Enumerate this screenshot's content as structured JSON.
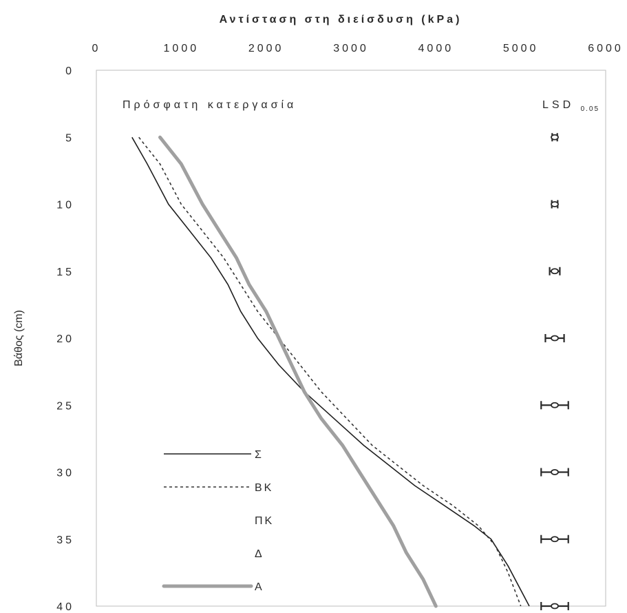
{
  "chart_data": {
    "type": "line",
    "title": "",
    "xlabel": "Αντίσταση στη διείσδυση (kPa)",
    "ylabel": "Βάθος (cm)",
    "xlim": [
      0,
      6000
    ],
    "ylim": [
      0,
      40
    ],
    "x_axis_position": "top",
    "y_inverted": true,
    "grid": false,
    "x_ticks": [
      "0",
      "1000",
      "2000",
      "3000",
      "4000",
      "5000",
      "6000"
    ],
    "y_ticks": [
      "0",
      "5",
      "10",
      "15",
      "20",
      "25",
      "30",
      "35",
      "40"
    ],
    "annotation": "Πρόσφατη κατεργασία",
    "lsd_label": {
      "main": "LSD",
      "sub": "0.05"
    },
    "series": [
      {
        "name": "Σ",
        "style": "solid-black",
        "points": [
          [
            420,
            5
          ],
          [
            600,
            7
          ],
          [
            850,
            10
          ],
          [
            1100,
            12
          ],
          [
            1350,
            14
          ],
          [
            1550,
            16
          ],
          [
            1700,
            18
          ],
          [
            1900,
            20
          ],
          [
            2150,
            22
          ],
          [
            2450,
            24
          ],
          [
            2800,
            26
          ],
          [
            3150,
            28
          ],
          [
            3450,
            29.5
          ],
          [
            3750,
            31
          ],
          [
            4100,
            32.5
          ],
          [
            4450,
            34
          ],
          [
            4650,
            35
          ],
          [
            4850,
            37
          ],
          [
            5100,
            40
          ]
        ]
      },
      {
        "name": "ΒΚ",
        "style": "dotted-black",
        "points": [
          [
            500,
            5
          ],
          [
            750,
            7
          ],
          [
            1000,
            10
          ],
          [
            1250,
            12
          ],
          [
            1500,
            14
          ],
          [
            1700,
            16
          ],
          [
            1900,
            18
          ],
          [
            2150,
            20
          ],
          [
            2400,
            22
          ],
          [
            2650,
            24
          ],
          [
            2950,
            26
          ],
          [
            3250,
            28
          ],
          [
            3550,
            29.5
          ],
          [
            3850,
            31
          ],
          [
            4200,
            32.5
          ],
          [
            4500,
            34
          ],
          [
            4700,
            35.5
          ],
          [
            4850,
            37.5
          ],
          [
            5000,
            40
          ]
        ]
      },
      {
        "name": "ΠΚ",
        "style": "none",
        "points": []
      },
      {
        "name": "Δ",
        "style": "none",
        "points": []
      },
      {
        "name": "Α",
        "style": "thick-gray",
        "points": [
          [
            750,
            5
          ],
          [
            1000,
            7
          ],
          [
            1250,
            10
          ],
          [
            1450,
            12
          ],
          [
            1650,
            14
          ],
          [
            1800,
            16
          ],
          [
            2000,
            18
          ],
          [
            2150,
            20
          ],
          [
            2300,
            22
          ],
          [
            2450,
            24
          ],
          [
            2650,
            26
          ],
          [
            2900,
            28
          ],
          [
            3100,
            30
          ],
          [
            3300,
            32
          ],
          [
            3500,
            34
          ],
          [
            3650,
            36
          ],
          [
            3850,
            38
          ],
          [
            4000,
            40
          ]
        ]
      }
    ],
    "lsd_bars": [
      {
        "depth": 5,
        "center": 5400,
        "half": 30
      },
      {
        "depth": 10,
        "center": 5400,
        "half": 35
      },
      {
        "depth": 15,
        "center": 5400,
        "half": 60
      },
      {
        "depth": 20,
        "center": 5400,
        "half": 110
      },
      {
        "depth": 25,
        "center": 5400,
        "half": 160
      },
      {
        "depth": 30,
        "center": 5400,
        "half": 160
      },
      {
        "depth": 35,
        "center": 5400,
        "half": 160
      },
      {
        "depth": 40,
        "center": 5400,
        "half": 160
      }
    ],
    "colors": {
      "axis": "#2a2a2a",
      "series_gray": "#a0a0a0",
      "plot_border": "#bdbdbd"
    }
  }
}
